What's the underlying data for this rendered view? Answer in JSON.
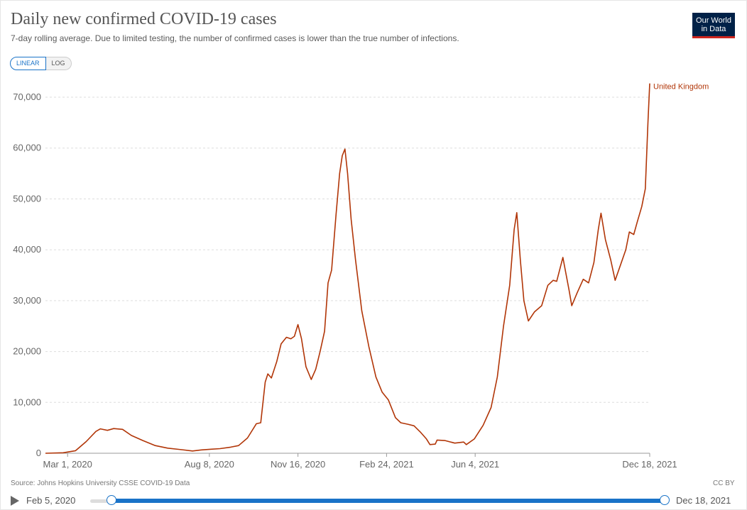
{
  "header": {
    "title": "Daily new confirmed COVID-19 cases",
    "subtitle": "7-day rolling average. Due to limited testing, the number of confirmed cases is lower than the true number of infections.",
    "logo_line1": "Our World",
    "logo_line2": "in Data"
  },
  "toggle": {
    "linear_label": "LINEAR",
    "log_label": "LOG",
    "selected": "LINEAR"
  },
  "footer": {
    "source": "Source: Johns Hopkins University CSSE COVID-19 Data",
    "license": "CC BY"
  },
  "timeline": {
    "start_label": "Feb 5, 2020",
    "end_label": "Dec 18, 2021"
  },
  "colors": {
    "series": "#b13507",
    "accent": "#1a73c8",
    "logo_bg": "#002147"
  },
  "chart_data": {
    "type": "line",
    "x_domain": [
      "2020-02-05",
      "2021-12-18"
    ],
    "ylim": [
      0,
      70000
    ],
    "yticks": [
      0,
      10000,
      20000,
      30000,
      40000,
      50000,
      60000,
      70000
    ],
    "ytick_labels": [
      "0",
      "10,000",
      "20,000",
      "30,000",
      "40,000",
      "50,000",
      "60,000",
      "70,000"
    ],
    "xticks": [
      "2020-03-01",
      "2020-08-08",
      "2020-11-16",
      "2021-02-24",
      "2021-06-04",
      "2021-12-18"
    ],
    "xtick_labels": [
      "Mar 1, 2020",
      "Aug 8, 2020",
      "Nov 16, 2020",
      "Feb 24, 2021",
      "Jun 4, 2021",
      "Dec 18, 2021"
    ],
    "grid": "horizontal-dashed",
    "series": [
      {
        "name": "United Kingdom",
        "points": [
          [
            "2020-02-05",
            0
          ],
          [
            "2020-02-25",
            100
          ],
          [
            "2020-03-10",
            500
          ],
          [
            "2020-03-22",
            2300
          ],
          [
            "2020-04-02",
            4300
          ],
          [
            "2020-04-07",
            4800
          ],
          [
            "2020-04-15",
            4500
          ],
          [
            "2020-04-22",
            4850
          ],
          [
            "2020-05-02",
            4700
          ],
          [
            "2020-05-12",
            3500
          ],
          [
            "2020-05-25",
            2500
          ],
          [
            "2020-06-08",
            1500
          ],
          [
            "2020-06-22",
            1000
          ],
          [
            "2020-07-08",
            700
          ],
          [
            "2020-07-20",
            450
          ],
          [
            "2020-07-30",
            650
          ],
          [
            "2020-08-10",
            800
          ],
          [
            "2020-08-20",
            900
          ],
          [
            "2020-09-01",
            1200
          ],
          [
            "2020-09-10",
            1500
          ],
          [
            "2020-09-20",
            3000
          ],
          [
            "2020-09-30",
            5800
          ],
          [
            "2020-10-05",
            6000
          ],
          [
            "2020-10-10",
            14000
          ],
          [
            "2020-10-13",
            15600
          ],
          [
            "2020-10-17",
            14800
          ],
          [
            "2020-10-23",
            18000
          ],
          [
            "2020-10-28",
            21500
          ],
          [
            "2020-11-03",
            22800
          ],
          [
            "2020-11-08",
            22500
          ],
          [
            "2020-11-12",
            23000
          ],
          [
            "2020-11-16",
            25300
          ],
          [
            "2020-11-20",
            22500
          ],
          [
            "2020-11-25",
            17000
          ],
          [
            "2020-12-01",
            14500
          ],
          [
            "2020-12-06",
            16500
          ],
          [
            "2020-12-11",
            20000
          ],
          [
            "2020-12-16",
            24000
          ],
          [
            "2020-12-20",
            33500
          ],
          [
            "2020-12-24",
            36000
          ],
          [
            "2020-12-29",
            47000
          ],
          [
            "2021-01-02",
            55000
          ],
          [
            "2021-01-05",
            58500
          ],
          [
            "2021-01-08",
            59800
          ],
          [
            "2021-01-11",
            55000
          ],
          [
            "2021-01-15",
            46000
          ],
          [
            "2021-01-20",
            38000
          ],
          [
            "2021-01-27",
            28000
          ],
          [
            "2021-02-04",
            21000
          ],
          [
            "2021-02-12",
            15000
          ],
          [
            "2021-02-19",
            12000
          ],
          [
            "2021-02-26",
            10500
          ],
          [
            "2021-03-06",
            7000
          ],
          [
            "2021-03-12",
            6000
          ],
          [
            "2021-03-20",
            5700
          ],
          [
            "2021-03-27",
            5400
          ],
          [
            "2021-04-03",
            4200
          ],
          [
            "2021-04-10",
            2800
          ],
          [
            "2021-04-14",
            1700
          ],
          [
            "2021-04-20",
            1800
          ],
          [
            "2021-04-22",
            2600
          ],
          [
            "2021-05-01",
            2500
          ],
          [
            "2021-05-12",
            2000
          ],
          [
            "2021-05-22",
            2200
          ],
          [
            "2021-05-25",
            1700
          ],
          [
            "2021-06-03",
            2800
          ],
          [
            "2021-06-13",
            5500
          ],
          [
            "2021-06-22",
            9000
          ],
          [
            "2021-06-29",
            15000
          ],
          [
            "2021-07-06",
            25000
          ],
          [
            "2021-07-13",
            33000
          ],
          [
            "2021-07-18",
            44000
          ],
          [
            "2021-07-21",
            47300
          ],
          [
            "2021-07-25",
            38000
          ],
          [
            "2021-07-29",
            30000
          ],
          [
            "2021-08-03",
            26000
          ],
          [
            "2021-08-10",
            27800
          ],
          [
            "2021-08-18",
            29000
          ],
          [
            "2021-08-25",
            33000
          ],
          [
            "2021-08-31",
            34000
          ],
          [
            "2021-09-04",
            33800
          ],
          [
            "2021-09-11",
            38500
          ],
          [
            "2021-09-18",
            32000
          ],
          [
            "2021-09-21",
            29000
          ],
          [
            "2021-09-27",
            31500
          ],
          [
            "2021-10-04",
            34200
          ],
          [
            "2021-10-10",
            33500
          ],
          [
            "2021-10-16",
            37500
          ],
          [
            "2021-10-21",
            44000
          ],
          [
            "2021-10-24",
            47200
          ],
          [
            "2021-10-29",
            42000
          ],
          [
            "2021-11-04",
            38000
          ],
          [
            "2021-11-09",
            34000
          ],
          [
            "2021-11-15",
            37000
          ],
          [
            "2021-11-21",
            40000
          ],
          [
            "2021-11-25",
            43500
          ],
          [
            "2021-11-30",
            43000
          ],
          [
            "2021-12-04",
            45500
          ],
          [
            "2021-12-09",
            48500
          ],
          [
            "2021-12-13",
            52000
          ],
          [
            "2021-12-16",
            65000
          ],
          [
            "2021-12-18",
            72700
          ]
        ]
      }
    ]
  }
}
